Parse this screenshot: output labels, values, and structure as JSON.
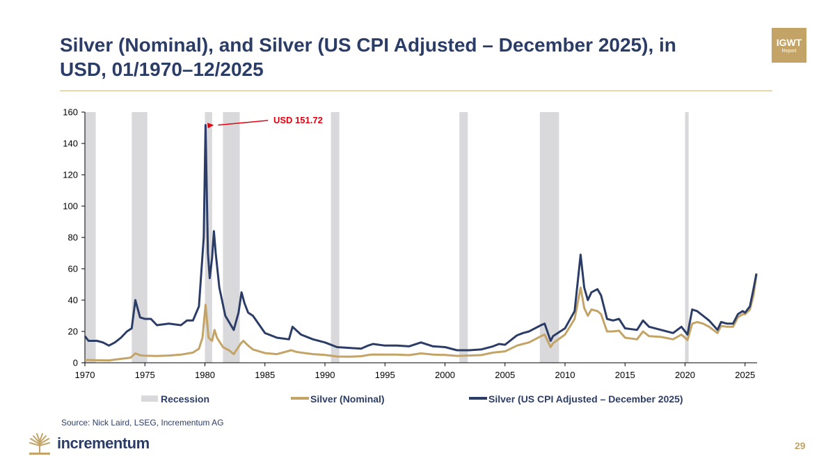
{
  "title": "Silver (Nominal), and Silver (US CPI Adjusted – December 2025), in USD, 01/1970–12/2025",
  "badge": {
    "main": "IGWT",
    "sub": "Report"
  },
  "source": "Source: Nick Laird, LSEG, Incrementum AG",
  "logo_text": "incrementum",
  "page_number": "29",
  "colors": {
    "navy": "#2b3d66",
    "gold": "#c3a466",
    "recession": "#d9d9dc",
    "annotation": "#e3000f"
  },
  "chart_data": {
    "type": "line",
    "xlim": [
      1970,
      2026
    ],
    "ylim": [
      0,
      160
    ],
    "x_ticks": [
      "1970",
      "1975",
      "1980",
      "1985",
      "1990",
      "1995",
      "2000",
      "2005",
      "2010",
      "2015",
      "2020",
      "2025"
    ],
    "y_ticks": [
      "0",
      "20",
      "40",
      "60",
      "80",
      "100",
      "120",
      "140",
      "160"
    ],
    "grid": false,
    "legend_position": "bottom",
    "recession_label": "Recession",
    "recessions": [
      [
        1970.0,
        1970.9
      ],
      [
        1973.9,
        1975.2
      ],
      [
        1980.0,
        1980.6
      ],
      [
        1981.5,
        1982.9
      ],
      [
        1990.5,
        1991.2
      ],
      [
        2001.2,
        2001.9
      ],
      [
        2007.9,
        2009.5
      ],
      [
        2020.0,
        2020.3
      ]
    ],
    "series": [
      {
        "name": "Silver (Nominal)",
        "color": "#c3a466",
        "points": [
          [
            1970.0,
            1.8
          ],
          [
            1971.0,
            1.6
          ],
          [
            1972.0,
            1.5
          ],
          [
            1973.0,
            2.5
          ],
          [
            1973.8,
            3.2
          ],
          [
            1974.2,
            6.0
          ],
          [
            1974.6,
            4.8
          ],
          [
            1975.0,
            4.5
          ],
          [
            1976.0,
            4.3
          ],
          [
            1977.0,
            4.6
          ],
          [
            1978.0,
            5.2
          ],
          [
            1979.0,
            6.5
          ],
          [
            1979.5,
            9.0
          ],
          [
            1979.8,
            16.0
          ],
          [
            1980.05,
            37.0
          ],
          [
            1980.3,
            16.0
          ],
          [
            1980.6,
            14.0
          ],
          [
            1980.8,
            21.0
          ],
          [
            1981.0,
            16.0
          ],
          [
            1981.5,
            10.0
          ],
          [
            1982.0,
            8.0
          ],
          [
            1982.4,
            5.5
          ],
          [
            1983.0,
            12.5
          ],
          [
            1983.2,
            14.0
          ],
          [
            1983.6,
            11.0
          ],
          [
            1984.0,
            8.5
          ],
          [
            1985.0,
            6.2
          ],
          [
            1986.0,
            5.5
          ],
          [
            1987.2,
            8.0
          ],
          [
            1987.6,
            7.0
          ],
          [
            1988.0,
            6.5
          ],
          [
            1989.0,
            5.5
          ],
          [
            1990.0,
            5.0
          ],
          [
            1991.0,
            4.0
          ],
          [
            1992.0,
            3.9
          ],
          [
            1993.0,
            4.2
          ],
          [
            1993.6,
            5.0
          ],
          [
            1994.0,
            5.3
          ],
          [
            1995.0,
            5.2
          ],
          [
            1996.0,
            5.2
          ],
          [
            1997.0,
            4.9
          ],
          [
            1998.0,
            6.0
          ],
          [
            1999.0,
            5.2
          ],
          [
            2000.0,
            5.0
          ],
          [
            2001.0,
            4.4
          ],
          [
            2002.0,
            4.6
          ],
          [
            2003.0,
            4.9
          ],
          [
            2004.0,
            6.5
          ],
          [
            2005.0,
            7.3
          ],
          [
            2006.0,
            11.0
          ],
          [
            2006.5,
            12.0
          ],
          [
            2007.0,
            13.0
          ],
          [
            2008.0,
            17.0
          ],
          [
            2008.3,
            18.0
          ],
          [
            2008.8,
            10.0
          ],
          [
            2009.0,
            12.5
          ],
          [
            2010.0,
            18.0
          ],
          [
            2010.8,
            28.0
          ],
          [
            2011.3,
            48.0
          ],
          [
            2011.6,
            35.0
          ],
          [
            2011.9,
            30.0
          ],
          [
            2012.2,
            34.0
          ],
          [
            2012.7,
            33.0
          ],
          [
            2013.0,
            31.0
          ],
          [
            2013.5,
            20.0
          ],
          [
            2014.0,
            20.0
          ],
          [
            2014.5,
            20.5
          ],
          [
            2015.0,
            16.0
          ],
          [
            2016.0,
            15.0
          ],
          [
            2016.5,
            20.0
          ],
          [
            2017.0,
            17.0
          ],
          [
            2018.0,
            16.5
          ],
          [
            2019.0,
            15.0
          ],
          [
            2019.7,
            18.0
          ],
          [
            2020.2,
            14.5
          ],
          [
            2020.6,
            25.0
          ],
          [
            2021.0,
            26.0
          ],
          [
            2021.5,
            25.0
          ],
          [
            2022.0,
            23.0
          ],
          [
            2022.7,
            19.0
          ],
          [
            2023.0,
            23.5
          ],
          [
            2023.5,
            23.0
          ],
          [
            2024.0,
            23.0
          ],
          [
            2024.4,
            29.0
          ],
          [
            2024.8,
            31.0
          ],
          [
            2025.0,
            31.0
          ],
          [
            2025.4,
            34.0
          ],
          [
            2025.7,
            43.0
          ],
          [
            2025.95,
            56.0
          ]
        ]
      },
      {
        "name": "Silver (US CPI Adjusted – December 2025)",
        "color": "#2b3d66",
        "points": [
          [
            1970.0,
            17.0
          ],
          [
            1970.3,
            14.0
          ],
          [
            1971.0,
            14.0
          ],
          [
            1971.5,
            13.0
          ],
          [
            1972.0,
            11.0
          ],
          [
            1972.5,
            13.0
          ],
          [
            1973.0,
            16.0
          ],
          [
            1973.5,
            20.0
          ],
          [
            1973.9,
            22.0
          ],
          [
            1974.2,
            40.0
          ],
          [
            1974.6,
            29.0
          ],
          [
            1975.0,
            28.0
          ],
          [
            1975.5,
            28.0
          ],
          [
            1976.0,
            24.0
          ],
          [
            1977.0,
            25.0
          ],
          [
            1978.0,
            24.0
          ],
          [
            1978.5,
            27.0
          ],
          [
            1979.0,
            27.0
          ],
          [
            1979.5,
            36.0
          ],
          [
            1979.9,
            80.0
          ],
          [
            1980.05,
            151.72
          ],
          [
            1980.25,
            70.0
          ],
          [
            1980.4,
            54.0
          ],
          [
            1980.6,
            67.0
          ],
          [
            1980.75,
            84.0
          ],
          [
            1980.9,
            70.0
          ],
          [
            1981.2,
            48.0
          ],
          [
            1981.7,
            30.0
          ],
          [
            1982.4,
            21.0
          ],
          [
            1982.8,
            32.0
          ],
          [
            1983.05,
            45.0
          ],
          [
            1983.3,
            38.0
          ],
          [
            1983.6,
            32.0
          ],
          [
            1984.0,
            30.0
          ],
          [
            1985.0,
            19.0
          ],
          [
            1986.0,
            16.0
          ],
          [
            1987.0,
            15.0
          ],
          [
            1987.3,
            23.0
          ],
          [
            1988.0,
            18.0
          ],
          [
            1989.0,
            15.0
          ],
          [
            1990.0,
            13.0
          ],
          [
            1991.0,
            10.0
          ],
          [
            1992.0,
            9.5
          ],
          [
            1993.0,
            9.0
          ],
          [
            1993.6,
            11.0
          ],
          [
            1994.0,
            12.0
          ],
          [
            1995.0,
            11.0
          ],
          [
            1996.0,
            11.0
          ],
          [
            1997.0,
            10.5
          ],
          [
            1998.0,
            13.0
          ],
          [
            1999.0,
            10.5
          ],
          [
            2000.0,
            10.0
          ],
          [
            2001.0,
            8.0
          ],
          [
            2002.0,
            8.0
          ],
          [
            2003.0,
            8.5
          ],
          [
            2004.0,
            10.5
          ],
          [
            2004.5,
            12.0
          ],
          [
            2005.0,
            11.5
          ],
          [
            2006.0,
            17.5
          ],
          [
            2006.5,
            19.0
          ],
          [
            2007.0,
            20.0
          ],
          [
            2008.0,
            24.0
          ],
          [
            2008.3,
            25.0
          ],
          [
            2008.8,
            14.0
          ],
          [
            2009.0,
            17.0
          ],
          [
            2010.0,
            22.0
          ],
          [
            2010.8,
            33.0
          ],
          [
            2011.3,
            69.0
          ],
          [
            2011.6,
            48.0
          ],
          [
            2011.9,
            40.0
          ],
          [
            2012.2,
            45.0
          ],
          [
            2012.7,
            47.0
          ],
          [
            2013.0,
            43.0
          ],
          [
            2013.5,
            28.0
          ],
          [
            2014.0,
            27.0
          ],
          [
            2014.5,
            28.0
          ],
          [
            2015.0,
            22.0
          ],
          [
            2016.0,
            21.0
          ],
          [
            2016.5,
            27.0
          ],
          [
            2017.0,
            23.0
          ],
          [
            2018.0,
            21.0
          ],
          [
            2019.0,
            19.0
          ],
          [
            2019.7,
            23.0
          ],
          [
            2020.2,
            18.0
          ],
          [
            2020.6,
            34.0
          ],
          [
            2021.0,
            33.0
          ],
          [
            2021.5,
            30.0
          ],
          [
            2022.0,
            27.0
          ],
          [
            2022.7,
            21.0
          ],
          [
            2023.0,
            26.0
          ],
          [
            2023.5,
            25.0
          ],
          [
            2024.0,
            25.0
          ],
          [
            2024.4,
            31.0
          ],
          [
            2024.8,
            33.0
          ],
          [
            2025.0,
            32.0
          ],
          [
            2025.4,
            36.0
          ],
          [
            2025.7,
            47.0
          ],
          [
            2025.95,
            57.0
          ]
        ]
      }
    ],
    "annotations": [
      {
        "text": "USD 151.72",
        "x": 1980.05,
        "y": 151.72
      }
    ]
  }
}
